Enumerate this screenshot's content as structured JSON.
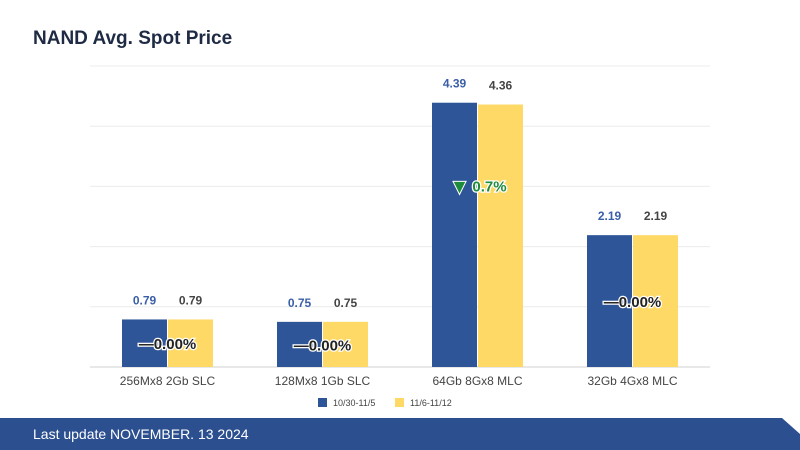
{
  "page": {
    "footer_text": "Last update NOVEMBER. 13  2024"
  },
  "chart_data": {
    "type": "bar",
    "title": "NAND Avg. Spot Price",
    "xlabel": "",
    "ylabel": "",
    "ylim": [
      0,
      5
    ],
    "grid": true,
    "legend_position": "bottom",
    "categories": [
      "256Mx8 2Gb SLC",
      "128Mx8 1Gb SLC",
      "64Gb 8Gx8 MLC",
      "32Gb 4Gx8 MLC"
    ],
    "series": [
      {
        "name": "10/30-11/5",
        "color": "#2e5597",
        "label_color": "#3a5ea8",
        "values": [
          0.79,
          0.75,
          4.39,
          2.19
        ],
        "labels": [
          "0.79",
          "0.75",
          "4.39",
          "2.19"
        ]
      },
      {
        "name": "11/6-11/12",
        "color": "#ffd966",
        "label_color": "#444444",
        "values": [
          0.79,
          0.75,
          4.36,
          2.19
        ],
        "labels": [
          "0.79",
          "0.75",
          "4.36",
          "2.19"
        ]
      }
    ],
    "annotations": [
      {
        "category_index": 0,
        "text": "—0.00%",
        "arrow": ""
      },
      {
        "category_index": 1,
        "text": "—0.00%",
        "arrow": ""
      },
      {
        "category_index": 2,
        "text": "0.7%",
        "arrow": "▼"
      },
      {
        "category_index": 3,
        "text": "—0.00%",
        "arrow": ""
      }
    ]
  }
}
